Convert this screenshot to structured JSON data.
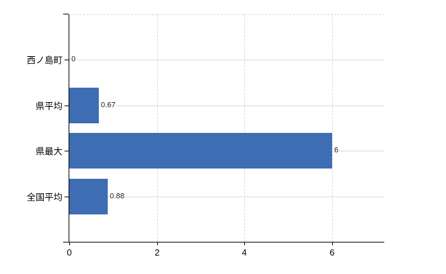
{
  "chart_data": {
    "type": "bar",
    "orientation": "horizontal",
    "title": "",
    "xlabel": "",
    "ylabel": "",
    "legend": "none",
    "categories": [
      "西ノ島町",
      "県平均",
      "県最大",
      "全国平均"
    ],
    "values": [
      0,
      0.67,
      6,
      0.88
    ],
    "value_labels": [
      "0",
      "0.67",
      "6",
      "0.88"
    ],
    "x_ticks": [
      0,
      2,
      4,
      6
    ],
    "x_tick_labels": [
      "0",
      "2",
      "4",
      "6"
    ],
    "xlim": [
      0,
      7.2
    ],
    "grid": {
      "vertical_gridlines": "dashed, at x ticks 2 4 6",
      "horizontal_gridlines": "solid, at category centers",
      "plot_top_border": "dashed"
    },
    "colors": {
      "bar": "#3e6db3",
      "h_gridline": "#d4ddd4",
      "v_gridline": "#ddd5dd",
      "top_border": "#d8d8d8",
      "axis": "#000000",
      "text": "#000000",
      "value_text": "#1a1a1a",
      "background": "#ffffff"
    }
  }
}
